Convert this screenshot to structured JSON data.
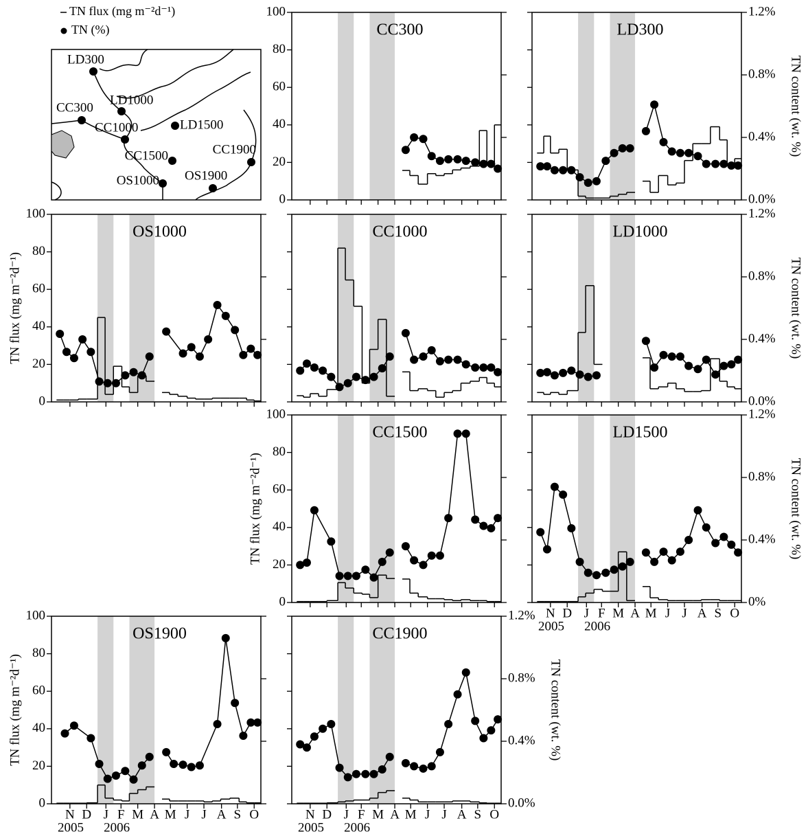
{
  "legend": {
    "flux": "TN flux (mg m⁻²d⁻¹)",
    "tn": "TN (%)",
    "flux_color": "#000000",
    "tn_color": "#000000"
  },
  "map": {
    "sites": [
      "LD300",
      "LD1000",
      "CC300",
      "LD1500",
      "CC1000",
      "CC1500",
      "CC1900",
      "OS1000",
      "OS1900"
    ]
  },
  "time_axis": {
    "y_title": "TN flux (mg m⁻²d⁻¹)",
    "y2_title": "TN content (wt. %)",
    "xlim": [
      0,
      12.5
    ],
    "xticks": [
      {
        "value": 1.1,
        "label": "N"
      },
      {
        "value": 2.1,
        "label": "D"
      },
      {
        "value": 3.25,
        "label": "J"
      },
      {
        "value": 4.15,
        "label": "F"
      },
      {
        "value": 5.15,
        "label": "M"
      },
      {
        "value": 6.15,
        "label": "A"
      },
      {
        "value": 7.1,
        "label": "M"
      },
      {
        "value": 8.1,
        "label": "J"
      },
      {
        "value": 9.1,
        "label": "J"
      },
      {
        "value": 10.15,
        "label": "A"
      },
      {
        "value": 11.1,
        "label": "S"
      },
      {
        "value": 12.1,
        "label": "O"
      }
    ],
    "year_labels": [
      {
        "value": 1.15,
        "label": "2005"
      },
      {
        "value": 3.9,
        "label": "2006"
      }
    ],
    "ylim": [
      0,
      100
    ],
    "yticks": [
      0,
      20,
      40,
      60,
      80,
      100
    ],
    "y2lim": [
      0,
      1.2
    ],
    "y2ticks": [
      {
        "value": 0,
        "label": "0.0%"
      },
      {
        "value": 0.4,
        "label": "0.4%"
      },
      {
        "value": 0.8,
        "label": "0.8%"
      },
      {
        "value": 1.2,
        "label": "1.2%"
      }
    ],
    "flux_bins": [
      0.3,
      0.7,
      1.1,
      1.6,
      2.1,
      2.75,
      3.2,
      3.7,
      4.2,
      4.65,
      5.15,
      5.65,
      6.15,
      6.6,
      7.05,
      7.55,
      8.1,
      8.6,
      9.1,
      9.6,
      10.1,
      10.65,
      11.2,
      11.65,
      12.1,
      12.5
    ],
    "shaded": [
      [
        2.75,
        3.7
      ],
      [
        4.65,
        6.15
      ]
    ],
    "shade_color": "#d3d3d3"
  },
  "chart_data": [
    {
      "type": "step_and_line",
      "name": "CC300",
      "y_labels": true,
      "y2_labels": false,
      "x_labels": false,
      "left_title": false,
      "right_title": false,
      "flux": [
        null,
        null,
        null,
        null,
        null,
        null,
        null,
        null,
        null,
        null,
        null,
        null,
        null,
        15.7,
        13,
        8.4,
        14,
        13,
        14,
        16,
        17,
        18,
        37,
        20,
        40
      ],
      "tn_x": [
        6.8,
        7.3,
        7.85,
        8.35,
        8.85,
        9.35,
        9.9,
        10.4,
        10.95,
        11.45,
        11.9,
        12.3
      ],
      "tn": [
        0.32,
        0.4,
        0.39,
        0.28,
        0.25,
        0.26,
        0.26,
        0.25,
        0.24,
        0.23,
        0.23,
        0.2
      ]
    },
    {
      "type": "step_and_line",
      "name": "LD300",
      "y_labels": false,
      "y2_labels": true,
      "x_labels": false,
      "left_title": false,
      "right_title": true,
      "flux": [
        25,
        34,
        25,
        27,
        16,
        2,
        1,
        1,
        1,
        2,
        3,
        4,
        null,
        10,
        4,
        13,
        8,
        9,
        21,
        30,
        30,
        39,
        32,
        19,
        22
      ],
      "tn_x": [
        0.5,
        0.9,
        1.35,
        1.85,
        2.35,
        2.85,
        3.35,
        3.85,
        4.4,
        4.9,
        5.4,
        5.85,
        6.3,
        6.8,
        7.3,
        7.85,
        8.35,
        8.85,
        9.35,
        9.9,
        10.4,
        10.95,
        11.45,
        11.9,
        12.3
      ],
      "tn": [
        0.215,
        0.215,
        0.19,
        0.19,
        0.19,
        0.145,
        0.11,
        0.12,
        0.25,
        0.3,
        0.33,
        0.33,
        null,
        0.44,
        0.61,
        0.37,
        0.31,
        0.3,
        0.3,
        0.28,
        0.23,
        0.23,
        0.23,
        0.22,
        0.22
      ]
    },
    {
      "type": "step_and_line",
      "name": "OS1000",
      "y_labels": true,
      "y2_labels": false,
      "x_labels": false,
      "left_title": true,
      "right_title": false,
      "flux": [
        1,
        1,
        1,
        1.5,
        1.5,
        45,
        4,
        19,
        8,
        5,
        14,
        11,
        null,
        5,
        4,
        3,
        2,
        1.5,
        1.5,
        2,
        2,
        2,
        2,
        1,
        0.5
      ],
      "tn_x": [
        0.5,
        0.9,
        1.35,
        1.85,
        2.35,
        2.85,
        3.35,
        3.85,
        4.4,
        4.9,
        5.4,
        5.85,
        6.3,
        6.85,
        7.85,
        8.35,
        8.85,
        9.35,
        9.9,
        10.4,
        10.95,
        11.45,
        11.9,
        12.3
      ],
      "tn": [
        0.435,
        0.32,
        0.28,
        0.4,
        0.32,
        0.13,
        0.12,
        0.12,
        0.17,
        0.19,
        0.17,
        0.29,
        null,
        0.45,
        0.31,
        0.35,
        0.29,
        0.4,
        0.62,
        0.55,
        0.46,
        0.3,
        0.34,
        0.3
      ]
    },
    {
      "type": "step_and_line",
      "name": "CC1000",
      "y_labels": false,
      "y2_labels": false,
      "x_labels": false,
      "left_title": false,
      "right_title": false,
      "flux": [
        3.3,
        2.5,
        4.4,
        3,
        6.6,
        82,
        65,
        51,
        10,
        28,
        44,
        3,
        null,
        16,
        6,
        7,
        6,
        2.5,
        5,
        6,
        10,
        11,
        13,
        10,
        8
      ],
      "tn_x": [
        0.5,
        0.9,
        1.35,
        1.85,
        2.35,
        2.85,
        3.35,
        3.85,
        4.4,
        4.9,
        5.4,
        5.85,
        6.3,
        6.8,
        7.3,
        7.85,
        8.35,
        8.85,
        9.35,
        9.9,
        10.4,
        10.95,
        11.45,
        11.9,
        12.3
      ],
      "tn": [
        0.2,
        0.245,
        0.22,
        0.2,
        0.16,
        0.095,
        0.12,
        0.16,
        0.14,
        0.16,
        0.215,
        0.29,
        null,
        0.44,
        0.27,
        0.29,
        0.33,
        0.26,
        0.27,
        0.27,
        0.24,
        0.22,
        0.22,
        0.22,
        0.19
      ]
    },
    {
      "type": "step_and_line",
      "name": "LD1000",
      "y_labels": false,
      "y2_labels": true,
      "x_labels": false,
      "left_title": false,
      "right_title": true,
      "flux": [
        5,
        4,
        5,
        4,
        6,
        37,
        62,
        20,
        null,
        null,
        null,
        null,
        null,
        23.5,
        7,
        8,
        10,
        7,
        5.5,
        5.5,
        6,
        23,
        11,
        8,
        7
      ],
      "tn_x": [
        0.5,
        0.9,
        1.35,
        1.85,
        2.35,
        2.85,
        3.35,
        3.85,
        6.3,
        6.8,
        7.3,
        7.85,
        8.35,
        8.85,
        9.35,
        9.9,
        10.4,
        10.95,
        11.45,
        11.9,
        12.3
      ],
      "tn": [
        0.185,
        0.19,
        0.17,
        0.185,
        0.2,
        0.175,
        0.16,
        0.17,
        null,
        0.39,
        0.22,
        0.3,
        0.29,
        0.29,
        0.23,
        0.21,
        0.27,
        0.175,
        0.23,
        0.24,
        0.27
      ]
    },
    {
      "type": "step_and_line",
      "name": "CC1500",
      "y_labels": true,
      "y2_labels": false,
      "x_labels": false,
      "left_title": true,
      "right_title": false,
      "flux": [
        0.5,
        0.5,
        0.5,
        0.5,
        1,
        10.6,
        7.7,
        5,
        4.4,
        2.6,
        14.6,
        12.8,
        null,
        12.5,
        5,
        3,
        2,
        2,
        1.5,
        1,
        1.5,
        1,
        1,
        0.5,
        0.5
      ],
      "tn_x": [
        0.5,
        0.9,
        1.35,
        2.35,
        2.85,
        3.35,
        3.85,
        4.4,
        4.9,
        5.4,
        5.85,
        6.3,
        6.8,
        7.3,
        7.85,
        8.35,
        8.85,
        9.35,
        9.9,
        10.4,
        10.95,
        11.45,
        11.9,
        12.3
      ],
      "tn": [
        0.24,
        0.255,
        0.59,
        0.39,
        0.17,
        0.17,
        0.17,
        0.21,
        0.16,
        0.26,
        0.32,
        null,
        0.36,
        0.27,
        0.24,
        0.3,
        0.3,
        0.54,
        1.08,
        1.08,
        0.53,
        0.49,
        0.475,
        0.54
      ]
    },
    {
      "type": "step_and_line",
      "name": "LD1500",
      "y_labels": false,
      "y2_labels": true,
      "x_labels": true,
      "left_title": false,
      "right_title": true,
      "y2ticks": [
        {
          "value": 0,
          "label": "0%"
        },
        {
          "value": 0.4,
          "label": "0.4%"
        },
        {
          "value": 0.8,
          "label": "0.8%"
        },
        {
          "value": 1.2,
          "label": "1.2%"
        }
      ],
      "flux": [
        0.5,
        0.5,
        0.5,
        0.5,
        0.5,
        3,
        5,
        7,
        6,
        6,
        27,
        1,
        null,
        8.5,
        2.5,
        1.5,
        1,
        1,
        1,
        1,
        1.5,
        1.5,
        1,
        1,
        1
      ],
      "tn_x": [
        0.5,
        0.9,
        1.35,
        1.85,
        2.35,
        2.85,
        3.35,
        3.85,
        4.4,
        4.9,
        5.4,
        5.85,
        6.3,
        6.8,
        7.3,
        7.85,
        8.35,
        8.85,
        9.35,
        9.9,
        10.4,
        10.95,
        11.45,
        11.9,
        12.3
      ],
      "tn": [
        0.45,
        0.34,
        0.74,
        0.69,
        0.475,
        0.26,
        0.19,
        0.175,
        0.19,
        0.21,
        0.23,
        0.26,
        null,
        0.32,
        0.26,
        0.325,
        0.27,
        0.325,
        0.4,
        0.59,
        0.48,
        0.38,
        0.42,
        0.37,
        0.32
      ]
    },
    {
      "type": "step_and_line",
      "name": "OS1900",
      "y_labels": true,
      "y2_labels": false,
      "x_labels": true,
      "left_title": true,
      "right_title": false,
      "flux": [
        0.3,
        0.3,
        0.3,
        0.3,
        0.5,
        10,
        3,
        2,
        1.5,
        5.5,
        7.5,
        9,
        null,
        2.5,
        1.5,
        1.5,
        1.5,
        1.5,
        1,
        1.5,
        2.5,
        3,
        1,
        0.5,
        0.5
      ],
      "tn_x": [
        0.8,
        1.35,
        2.35,
        2.85,
        3.35,
        3.85,
        4.4,
        4.9,
        5.4,
        5.85,
        6.3,
        6.85,
        7.3,
        7.85,
        8.35,
        8.85,
        9.9,
        10.4,
        10.95,
        11.45,
        11.9,
        12.3
      ],
      "tn": [
        0.45,
        0.5,
        0.42,
        0.255,
        0.16,
        0.18,
        0.21,
        0.155,
        0.245,
        0.3,
        null,
        0.33,
        0.255,
        0.25,
        0.235,
        0.245,
        0.51,
        1.06,
        0.645,
        0.435,
        0.52,
        0.52
      ]
    },
    {
      "type": "step_and_line",
      "name": "CC1900",
      "y_labels": false,
      "y2_labels": true,
      "x_labels": true,
      "left_title": false,
      "right_title": true,
      "flux": [
        0.3,
        0.3,
        0.3,
        0.3,
        0.5,
        1,
        1.5,
        2,
        2,
        3,
        6,
        7,
        null,
        3,
        2,
        1,
        1,
        1,
        1,
        1.5,
        1.5,
        1,
        0.5,
        0.3,
        0.3
      ],
      "tn_x": [
        0.5,
        0.9,
        1.35,
        1.85,
        2.35,
        2.85,
        3.35,
        3.85,
        4.4,
        4.9,
        5.4,
        5.85,
        6.3,
        6.8,
        7.3,
        7.85,
        8.35,
        8.85,
        9.35,
        9.9,
        10.4,
        10.95,
        11.45,
        11.9,
        12.3
      ],
      "tn": [
        0.38,
        0.36,
        0.43,
        0.48,
        0.51,
        0.23,
        0.17,
        0.19,
        0.19,
        0.19,
        0.22,
        0.3,
        null,
        0.26,
        0.24,
        0.225,
        0.24,
        0.33,
        0.51,
        0.7,
        0.84,
        0.53,
        0.42,
        0.47,
        0.54
      ]
    }
  ]
}
